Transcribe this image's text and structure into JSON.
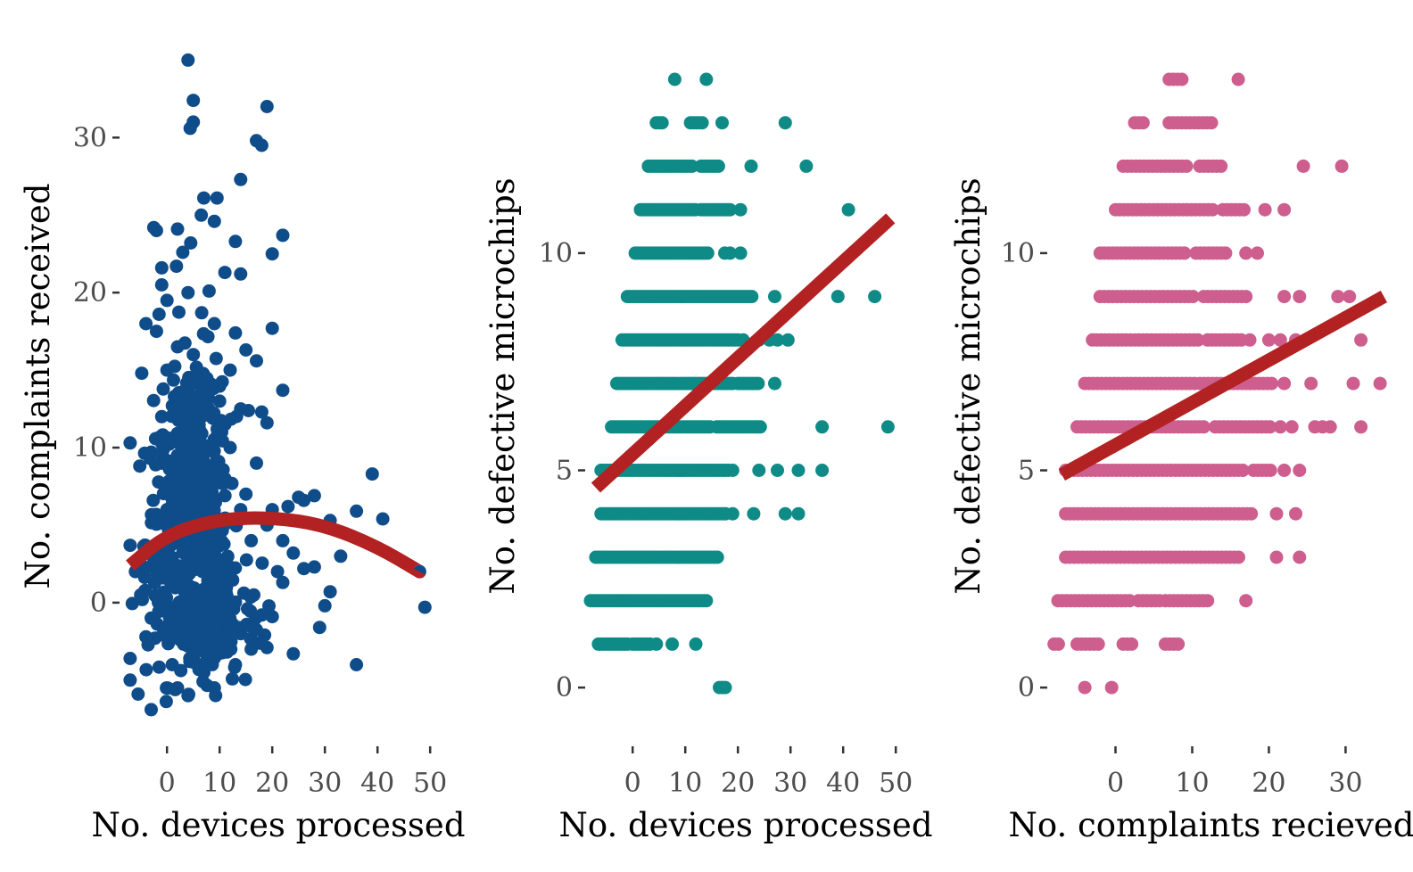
{
  "chart_data": [
    {
      "type": "scatter",
      "xlabel": "No. devices processed",
      "ylabel": "No. complaints received",
      "xlim": [
        -8,
        52
      ],
      "ylim": [
        -8,
        36
      ],
      "x_ticks": [
        0,
        10,
        20,
        30,
        40,
        50
      ],
      "y_ticks": [
        0,
        10,
        20,
        30
      ],
      "point_color": "#0f4c8a",
      "fit_color": "#b22222",
      "fit": {
        "kind": "quadratic",
        "x": [
          -7,
          0,
          10,
          20,
          30,
          40,
          48
        ],
        "y": [
          2.4,
          4.4,
          5.4,
          5.5,
          5.0,
          3.6,
          2.0
        ]
      },
      "points": [
        [
          4,
          35
        ],
        [
          5,
          32.4
        ],
        [
          5,
          31
        ],
        [
          4.4,
          30.6
        ],
        [
          19,
          32
        ],
        [
          17,
          29.8
        ],
        [
          18,
          29.5
        ],
        [
          14,
          27.3
        ],
        [
          7,
          26.1
        ],
        [
          9.5,
          26.1
        ],
        [
          6.5,
          25
        ],
        [
          9,
          24.6
        ],
        [
          2,
          24.1
        ],
        [
          -2.5,
          24.2
        ],
        [
          -2,
          24
        ],
        [
          22,
          23.7
        ],
        [
          4.5,
          23.2
        ],
        [
          13,
          23.3
        ],
        [
          20,
          22.5
        ],
        [
          3,
          22.6
        ],
        [
          1.8,
          21.7
        ],
        [
          -1,
          21.6
        ],
        [
          -1,
          20.5
        ],
        [
          11,
          21.3
        ],
        [
          14,
          21.2
        ],
        [
          8,
          20.1
        ],
        [
          0,
          19.5
        ],
        [
          -1.5,
          18.6
        ],
        [
          4,
          20
        ],
        [
          -2,
          17.5
        ],
        [
          20,
          17.7
        ],
        [
          -4,
          18
        ],
        [
          6.6,
          18.7
        ],
        [
          9,
          18
        ],
        [
          13,
          17.4
        ],
        [
          15,
          16.3
        ],
        [
          17,
          15.6
        ],
        [
          22,
          13.7
        ],
        [
          14,
          12.5
        ],
        [
          18,
          12.3
        ],
        [
          19,
          11.6
        ],
        [
          23,
          6.2
        ],
        [
          26,
          6.6
        ],
        [
          28,
          6.9
        ],
        [
          31,
          5.3
        ],
        [
          25,
          6.8
        ],
        [
          36,
          5.9
        ],
        [
          41,
          5.4
        ],
        [
          39,
          8.3
        ],
        [
          33,
          3
        ],
        [
          24,
          3.2
        ],
        [
          26,
          2.2
        ],
        [
          28,
          2.3
        ],
        [
          22,
          1.3
        ],
        [
          31,
          0.7
        ],
        [
          30,
          -0.2
        ],
        [
          29,
          -1.6
        ],
        [
          36,
          -4
        ],
        [
          48,
          2
        ],
        [
          49,
          -0.3
        ],
        [
          24,
          -3.3
        ],
        [
          19,
          -2.9
        ],
        [
          18,
          -0.8
        ],
        [
          20,
          -0.9
        ],
        [
          -7,
          10.3
        ],
        [
          -7,
          3.7
        ],
        [
          -7,
          -3.6
        ],
        [
          -7,
          -5
        ],
        [
          -5.5,
          -5.9
        ],
        [
          -3,
          -6.9
        ],
        [
          -5,
          0.5
        ],
        [
          -4,
          -2.2
        ],
        [
          -6,
          2
        ],
        [
          10,
          13
        ],
        [
          12,
          15
        ],
        [
          5,
          16
        ],
        [
          0,
          15
        ],
        [
          2,
          9.5
        ],
        [
          8,
          6
        ],
        [
          6,
          3
        ],
        [
          3,
          1
        ],
        [
          1,
          -1
        ],
        [
          10,
          -1
        ],
        [
          13,
          -4
        ],
        [
          7,
          -4.5
        ],
        [
          2,
          -5.5
        ],
        [
          14,
          -2
        ],
        [
          15,
          7
        ],
        [
          11,
          8
        ],
        [
          3,
          12
        ],
        [
          -1,
          12
        ],
        [
          16,
          4
        ],
        [
          12,
          10
        ],
        [
          16,
          -3
        ],
        [
          9,
          -3
        ],
        [
          0,
          6
        ],
        [
          4,
          8
        ],
        [
          6,
          10
        ],
        [
          8,
          14
        ],
        [
          -2,
          3
        ],
        [
          -3,
          -1
        ],
        [
          20,
          6
        ],
        [
          22,
          4
        ],
        [
          21,
          2
        ],
        [
          12,
          2
        ],
        [
          7,
          0
        ],
        [
          5,
          -2
        ],
        [
          1,
          -4
        ],
        [
          10,
          5
        ],
        [
          -1,
          9
        ],
        [
          17,
          9
        ],
        [
          19,
          5
        ],
        [
          4,
          -6
        ],
        [
          9,
          -5.5
        ],
        [
          -4.8,
          14.8
        ],
        [
          2,
          16.5
        ],
        [
          11,
          11.5
        ],
        [
          6,
          5
        ],
        [
          0,
          2
        ],
        [
          14,
          6
        ]
      ],
      "dense_clouds": [
        {
          "cx": 4,
          "cy": 4,
          "rx": 8,
          "ry": 9,
          "n": 420
        },
        {
          "cx": 6,
          "cy": 10,
          "rx": 6,
          "ry": 6,
          "n": 140
        },
        {
          "cx": 10,
          "cy": -1,
          "rx": 8,
          "ry": 3.5,
          "n": 120
        }
      ]
    },
    {
      "type": "scatter",
      "xlabel": "No. devices processed",
      "ylabel": "No. defective microchips",
      "xlim": [
        -8,
        52
      ],
      "ylim": [
        -0.9,
        14.8
      ],
      "x_ticks": [
        0,
        10,
        20,
        30,
        40,
        50
      ],
      "y_ticks": [
        0,
        5,
        10
      ],
      "point_color": "#0f8b87",
      "fit_color": "#b22222",
      "fit": {
        "kind": "linear",
        "x": [
          -7,
          49
        ],
        "y": [
          4.6,
          10.8
        ]
      },
      "rows": [
        {
          "y": 14,
          "segments": [
            [
              8,
              8
            ]
          ],
          "points": [
            14
          ]
        },
        {
          "y": 13,
          "segments": [
            [
              4.5,
              6
            ],
            [
              11,
              13.5
            ]
          ],
          "points": [
            17,
            29
          ]
        },
        {
          "y": 12,
          "segments": [
            [
              3,
              11.5
            ],
            [
              13,
              16.5
            ]
          ],
          "points": [
            22.5,
            33
          ]
        },
        {
          "y": 11,
          "segments": [
            [
              1.5,
              12
            ],
            [
              13,
              18.5
            ]
          ],
          "points": [
            20.5,
            41
          ]
        },
        {
          "y": 10,
          "segments": [
            [
              0.5,
              14.5
            ]
          ],
          "points": [
            17.5,
            18.5,
            20.5
          ]
        },
        {
          "y": 9,
          "segments": [
            [
              -1,
              23
            ]
          ],
          "points": [
            27,
            39,
            46
          ]
        },
        {
          "y": 8,
          "segments": [
            [
              -2,
              20
            ]
          ],
          "points": [
            21,
            24,
            26,
            27.5,
            29.5
          ]
        },
        {
          "y": 7,
          "segments": [
            [
              -3,
              19
            ],
            [
              20,
              24
            ]
          ],
          "points": [
            27
          ]
        },
        {
          "y": 6,
          "segments": [
            [
              -4,
              15
            ],
            [
              16,
              24.5
            ]
          ],
          "points": [
            36,
            48.5
          ]
        },
        {
          "y": 5,
          "segments": [
            [
              -6,
              18.5
            ]
          ],
          "points": [
            19,
            24,
            27.5,
            31.5,
            36
          ]
        },
        {
          "y": 4,
          "segments": [
            [
              -6,
              18
            ]
          ],
          "points": [
            19,
            23,
            29,
            31.5
          ]
        },
        {
          "y": 3,
          "segments": [
            [
              -7,
              16.5
            ]
          ],
          "points": []
        },
        {
          "y": 2,
          "segments": [
            [
              -8,
              14.5
            ]
          ],
          "points": []
        },
        {
          "y": 1,
          "segments": [
            [
              -6.5,
              -1
            ],
            [
              0,
              3.5
            ]
          ],
          "points": [
            4.5,
            7.5,
            12
          ]
        },
        {
          "y": 0,
          "segments": [
            [
              16.5,
              18
            ]
          ],
          "points": []
        }
      ]
    },
    {
      "type": "scatter",
      "xlabel": "No. complaints recieved",
      "ylabel": "No. defective microchips",
      "xlim": [
        -8.2,
        36
      ],
      "ylim": [
        -0.9,
        14.8
      ],
      "x_ticks": [
        0,
        10,
        20,
        30
      ],
      "y_ticks": [
        0,
        5,
        10
      ],
      "point_color": "#cd5e8e",
      "fit_color": "#b22222",
      "fit": {
        "kind": "linear",
        "x": [
          -7,
          35
        ],
        "y": [
          4.9,
          9.0
        ]
      },
      "rows": [
        {
          "y": 14,
          "segments": [
            [
              7,
              9
            ]
          ],
          "points": [
            16
          ]
        },
        {
          "y": 13,
          "segments": [
            [
              2.5,
              4
            ],
            [
              7,
              13
            ]
          ],
          "points": []
        },
        {
          "y": 12,
          "segments": [
            [
              1,
              9.5
            ],
            [
              11,
              14
            ]
          ],
          "points": [
            24.5,
            29.5
          ]
        },
        {
          "y": 11,
          "segments": [
            [
              0,
              13
            ],
            [
              14,
              17
            ]
          ],
          "points": [
            19.5,
            22
          ]
        },
        {
          "y": 10,
          "segments": [
            [
              -2,
              9.5
            ],
            [
              10.5,
              14.5
            ]
          ],
          "points": [
            17,
            18.5
          ]
        },
        {
          "y": 9,
          "segments": [
            [
              -2,
              10.5
            ],
            [
              11.5,
              17
            ]
          ],
          "points": [
            22,
            24,
            29,
            30.5
          ]
        },
        {
          "y": 8,
          "segments": [
            [
              -3,
              11
            ],
            [
              12,
              16.5
            ]
          ],
          "points": [
            17.5,
            20,
            21.5,
            23.5,
            32
          ]
        },
        {
          "y": 7,
          "segments": [
            [
              -4,
              10.5
            ],
            [
              11,
              20.5
            ]
          ],
          "points": [
            22,
            25.5,
            31,
            34.5
          ]
        },
        {
          "y": 6,
          "segments": [
            [
              -5,
              12
            ],
            [
              13,
              20.5
            ]
          ],
          "points": [
            21.5,
            23,
            26,
            27,
            28,
            32
          ]
        },
        {
          "y": 5,
          "segments": [
            [
              -6.5,
              17
            ],
            [
              18,
              20.5
            ]
          ],
          "points": [
            22,
            24
          ]
        },
        {
          "y": 4,
          "segments": [
            [
              -6.5,
              18
            ]
          ],
          "points": [
            21,
            23.5
          ]
        },
        {
          "y": 3,
          "segments": [
            [
              -6.5,
              15
            ],
            [
              15.5,
              16.5
            ]
          ],
          "points": [
            21,
            24
          ]
        },
        {
          "y": 2,
          "segments": [
            [
              -7.5,
              2
            ],
            [
              3,
              6
            ],
            [
              6.5,
              12.5
            ]
          ],
          "points": [
            17
          ]
        },
        {
          "y": 1,
          "segments": [
            [
              -8,
              -7
            ],
            [
              -5,
              -2
            ],
            [
              1,
              2.5
            ],
            [
              6.5,
              8.5
            ]
          ],
          "points": []
        },
        {
          "y": 0,
          "segments": [],
          "points": [
            -4,
            -0.5
          ]
        }
      ]
    }
  ]
}
